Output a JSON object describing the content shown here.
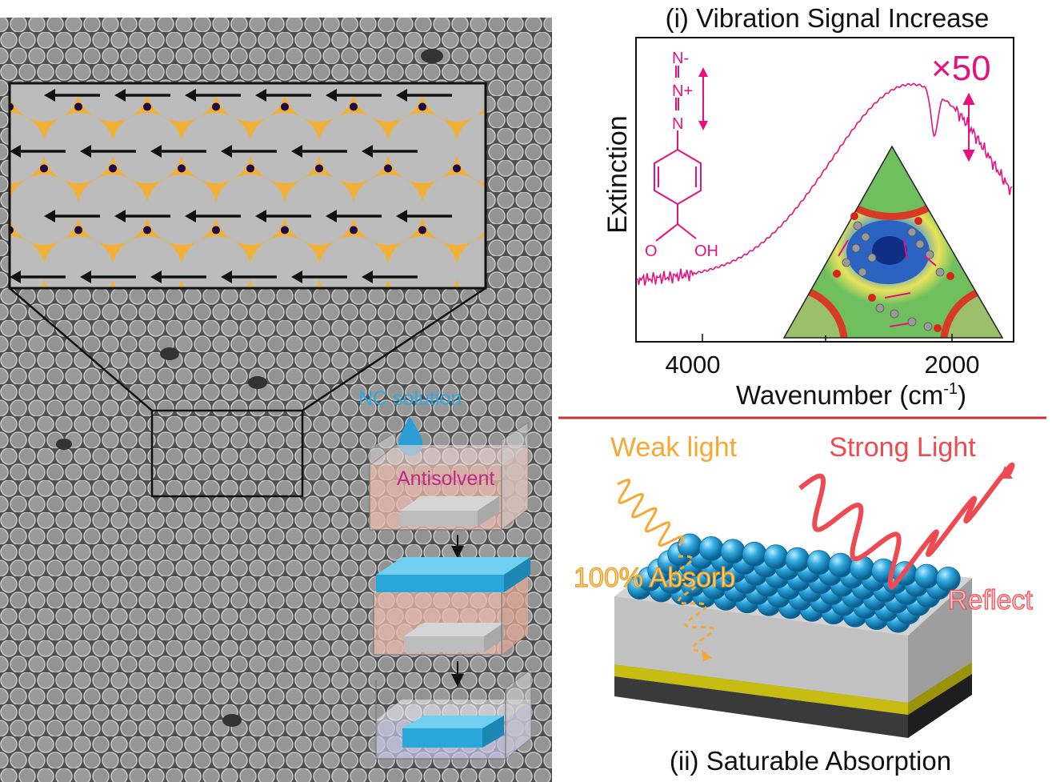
{
  "left_panel": {
    "inset": {
      "arrow_rows": 4
    },
    "process": {
      "nc_solution_label": "NC solution",
      "antisolvent_label": "Antisolvent"
    }
  },
  "panel_i": {
    "title": "(i) Vibration Signal Increase",
    "ylabel": "Extinction",
    "xlabel_main": "Wavenumber (cm",
    "xlabel_sup": "-1",
    "xlabel_close": ")",
    "x_ticks": [
      "4000",
      "2000"
    ],
    "enhancement_label": "×50",
    "molecule_labels": {
      "n_minus": "N-",
      "n_plus": "N+",
      "n": "N",
      "oxygen": "O",
      "oh": "OH"
    }
  },
  "panel_ii": {
    "title": "(ii) Saturable Absorption",
    "weak_light_label": "Weak light",
    "strong_light_label": "Strong Light",
    "absorb_label": "100% Absorb",
    "reflect_label": "Reflect"
  },
  "colors": {
    "magenta": "#e5127d",
    "orange": "#f7a833",
    "red": "#ee4a52",
    "cyan": "#2fa9e0",
    "divider": "#c8303e"
  }
}
